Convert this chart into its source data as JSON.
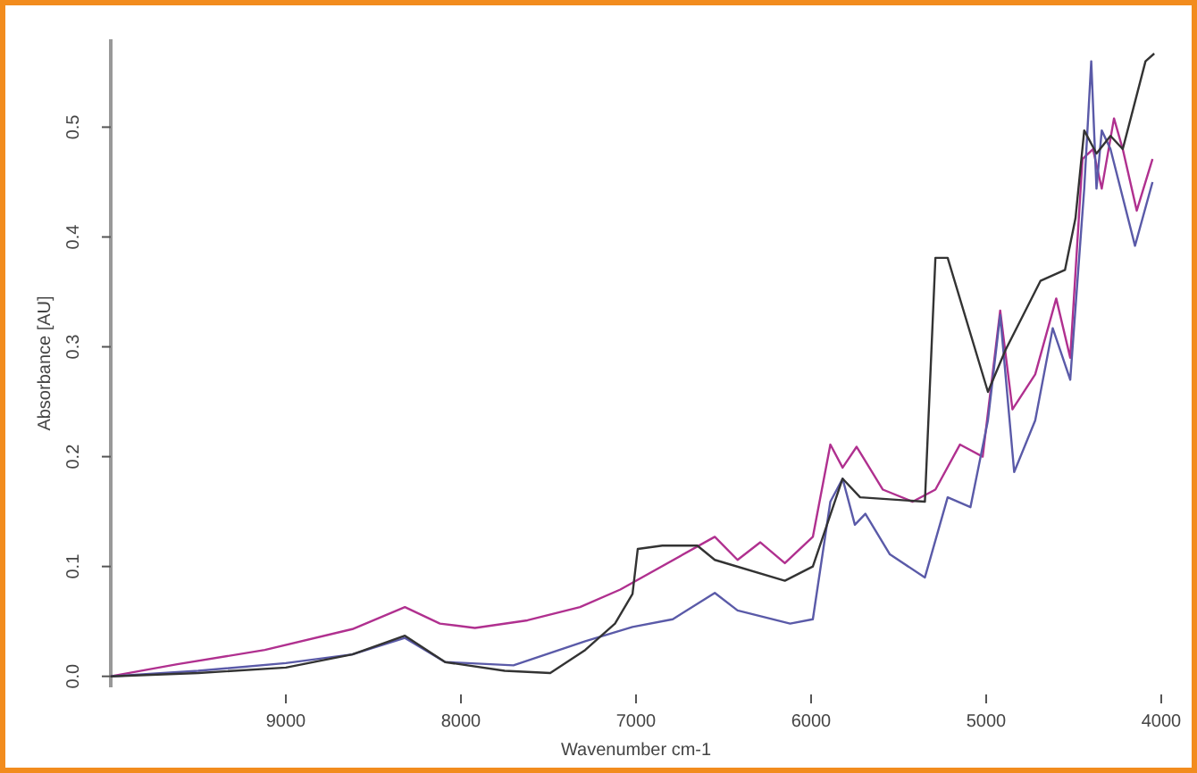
{
  "chart_data": {
    "type": "line",
    "xlabel": "Wavenumber cm-1",
    "ylabel": "Absorbance [AU]",
    "xlim": [
      10000,
      4000
    ],
    "xticks": [
      9000,
      8000,
      7000,
      6000,
      5000,
      4000
    ],
    "ylim": [
      -0.01,
      0.58
    ],
    "yticks": [
      {
        "value": 0,
        "label": "0.0"
      },
      0.1,
      0.2,
      0.3,
      0.4,
      0.5
    ],
    "grid": false,
    "marker": "none",
    "line_style": "solid",
    "series": [
      {
        "color": "#b0308f",
        "x": [
          10000,
          9620,
          9120,
          8620,
          8320,
          8120,
          7920,
          7620,
          7320,
          7090,
          6550,
          6420,
          6290,
          6150,
          5990,
          5890,
          5820,
          5740,
          5590,
          5420,
          5290,
          5150,
          5020,
          4920,
          4850,
          4720,
          4600,
          4520,
          4450,
          4390,
          4340,
          4270,
          4220,
          4140,
          4050
        ],
        "values": [
          0.0,
          0.011,
          0.024,
          0.043,
          0.063,
          0.048,
          0.044,
          0.051,
          0.063,
          0.079,
          0.127,
          0.106,
          0.122,
          0.103,
          0.127,
          0.211,
          0.19,
          0.209,
          0.17,
          0.159,
          0.17,
          0.211,
          0.2,
          0.333,
          0.243,
          0.275,
          0.344,
          0.29,
          0.471,
          0.48,
          0.444,
          0.508,
          0.48,
          0.424,
          0.471
        ]
      },
      {
        "color": "#5a5aa8",
        "x": [
          10000,
          9500,
          9000,
          8620,
          8320,
          8090,
          7700,
          7290,
          7020,
          6790,
          6550,
          6420,
          6120,
          5990,
          5890,
          5820,
          5750,
          5690,
          5550,
          5350,
          5220,
          5090,
          4990,
          4920,
          4840,
          4720,
          4620,
          4520,
          4440,
          4400,
          4370,
          4340,
          4290,
          4150,
          4050
        ],
        "values": [
          0.0,
          0.005,
          0.012,
          0.02,
          0.035,
          0.013,
          0.01,
          0.032,
          0.045,
          0.052,
          0.076,
          0.06,
          0.048,
          0.052,
          0.159,
          0.18,
          0.138,
          0.148,
          0.111,
          0.09,
          0.163,
          0.154,
          0.233,
          0.329,
          0.186,
          0.233,
          0.317,
          0.27,
          0.444,
          0.56,
          0.444,
          0.497,
          0.48,
          0.392,
          0.45
        ]
      },
      {
        "color": "#333333",
        "x": [
          10000,
          9500,
          9000,
          8620,
          8320,
          8090,
          7750,
          7490,
          7290,
          7120,
          7020,
          6990,
          6850,
          6650,
          6550,
          6150,
          5990,
          5820,
          5720,
          5350,
          5290,
          5220,
          4990,
          4890,
          4690,
          4550,
          4490,
          4440,
          4370,
          4290,
          4220,
          4090,
          4040
        ],
        "values": [
          0.0,
          0.003,
          0.008,
          0.02,
          0.037,
          0.013,
          0.005,
          0.003,
          0.024,
          0.048,
          0.075,
          0.116,
          0.119,
          0.119,
          0.106,
          0.087,
          0.1,
          0.18,
          0.163,
          0.159,
          0.381,
          0.381,
          0.259,
          0.297,
          0.36,
          0.37,
          0.417,
          0.497,
          0.476,
          0.492,
          0.48,
          0.56,
          0.567
        ]
      }
    ]
  }
}
